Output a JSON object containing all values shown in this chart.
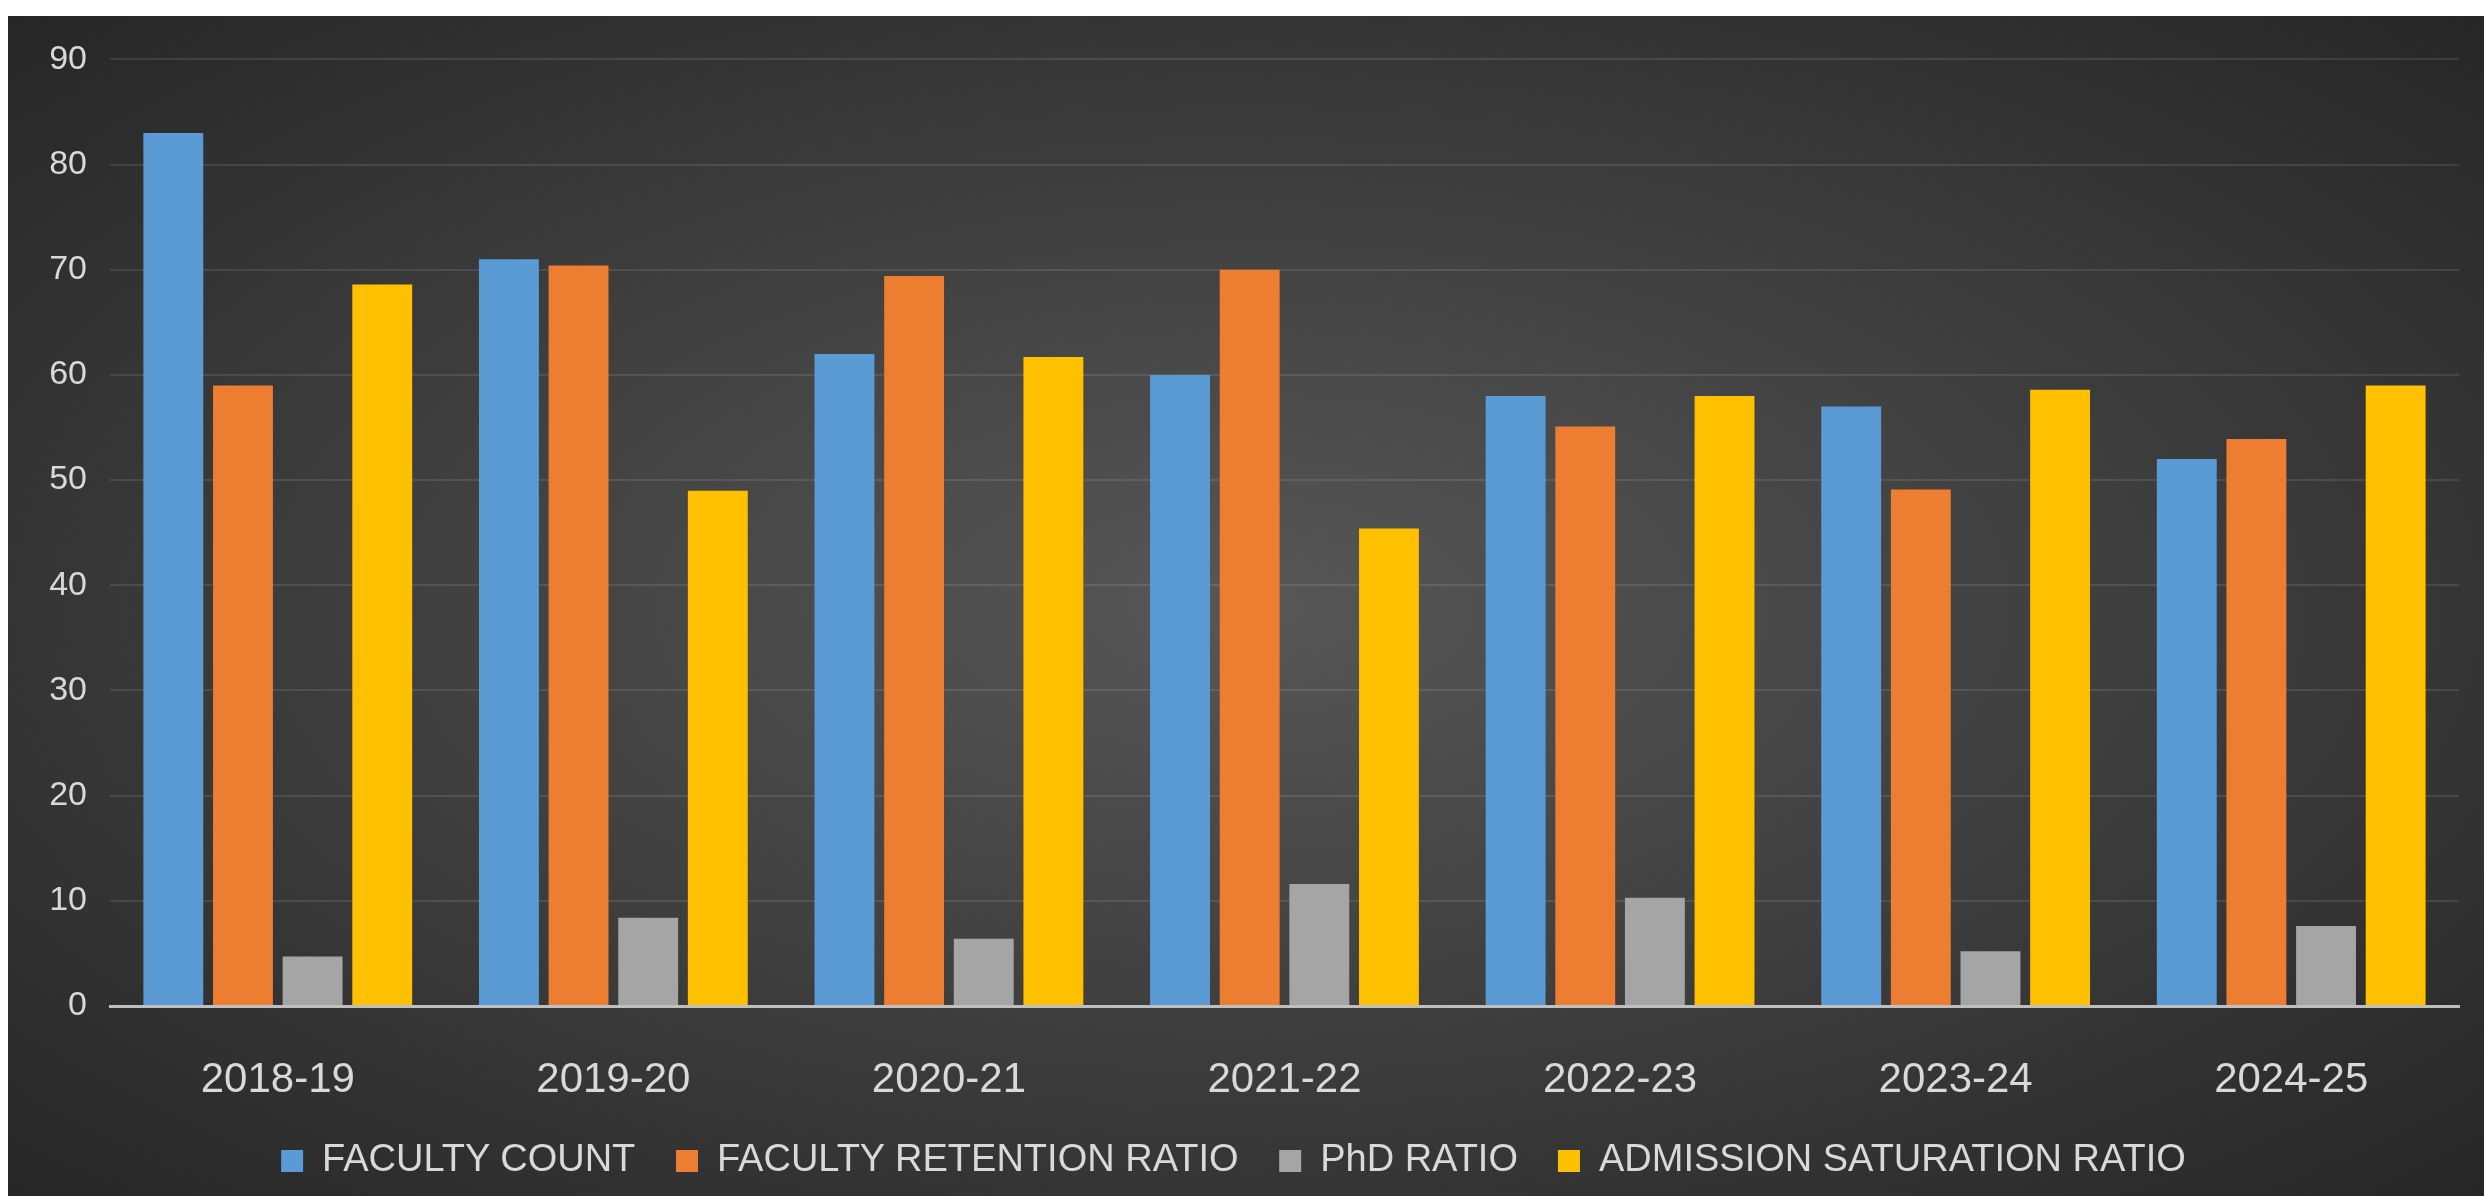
{
  "chart_data": {
    "type": "bar",
    "categories": [
      "2018-19",
      "2019-20",
      "2020-21",
      "2021-22",
      "2022-23",
      "2023-24",
      "2024-25"
    ],
    "series": [
      {
        "name": "FACULTY COUNT",
        "color": "#5b9bd5",
        "values": [
          83,
          71,
          62,
          60,
          58,
          57,
          52
        ]
      },
      {
        "name": "FACULTY RETENTION RATIO",
        "color": "#ed7d31",
        "values": [
          59,
          70.4,
          69.4,
          70,
          55.1,
          49.1,
          53.9
        ]
      },
      {
        "name": "PhD RATIO",
        "color": "#a5a5a5",
        "values": [
          4.7,
          8.4,
          6.4,
          11.6,
          10.3,
          5.2,
          7.6
        ]
      },
      {
        "name": "ADMISSION SATURATION RATIO",
        "color": "#ffc000",
        "values": [
          68.6,
          49,
          61.7,
          45.4,
          58,
          58.6,
          59
        ]
      }
    ],
    "ylim": [
      0,
      90
    ],
    "yticks": [
      0,
      10,
      20,
      30,
      40,
      50,
      60,
      70,
      80,
      90
    ],
    "grid": "y",
    "legend": "bottom"
  }
}
